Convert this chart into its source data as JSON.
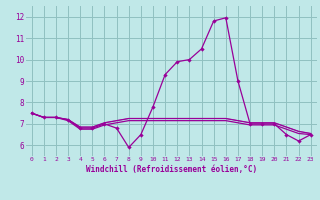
{
  "xlabel": "Windchill (Refroidissement éolien,°C)",
  "xlim": [
    -0.5,
    23.5
  ],
  "ylim": [
    5.5,
    12.5
  ],
  "yticks": [
    6,
    7,
    8,
    9,
    10,
    11,
    12
  ],
  "xticks": [
    0,
    1,
    2,
    3,
    4,
    5,
    6,
    7,
    8,
    9,
    10,
    11,
    12,
    13,
    14,
    15,
    16,
    17,
    18,
    19,
    20,
    21,
    22,
    23
  ],
  "background_color": "#c0e8e8",
  "grid_color": "#90c0c0",
  "line_color": "#990099",
  "line1": [
    7.5,
    7.3,
    7.3,
    7.2,
    6.8,
    6.8,
    7.0,
    6.8,
    5.9,
    6.5,
    7.8,
    9.3,
    9.9,
    10.0,
    10.5,
    11.8,
    11.95,
    9.0,
    7.0,
    7.0,
    7.0,
    6.5,
    6.2,
    6.5
  ],
  "line2": [
    7.5,
    7.3,
    7.3,
    7.15,
    6.75,
    6.75,
    6.95,
    7.05,
    7.15,
    7.15,
    7.15,
    7.15,
    7.15,
    7.15,
    7.15,
    7.15,
    7.15,
    7.05,
    6.95,
    6.95,
    6.95,
    6.75,
    6.55,
    6.5
  ],
  "line3": [
    7.5,
    7.3,
    7.3,
    7.2,
    6.85,
    6.85,
    7.05,
    7.15,
    7.25,
    7.25,
    7.25,
    7.25,
    7.25,
    7.25,
    7.25,
    7.25,
    7.25,
    7.15,
    7.05,
    7.05,
    7.05,
    6.85,
    6.65,
    6.55
  ],
  "line4": [
    7.5,
    7.3,
    7.3,
    7.2,
    6.85,
    6.85,
    7.05,
    7.15,
    7.25,
    7.25,
    7.25,
    7.25,
    7.25,
    7.25,
    7.25,
    7.25,
    7.25,
    7.15,
    7.05,
    7.05,
    7.05,
    6.85,
    6.65,
    6.55
  ]
}
